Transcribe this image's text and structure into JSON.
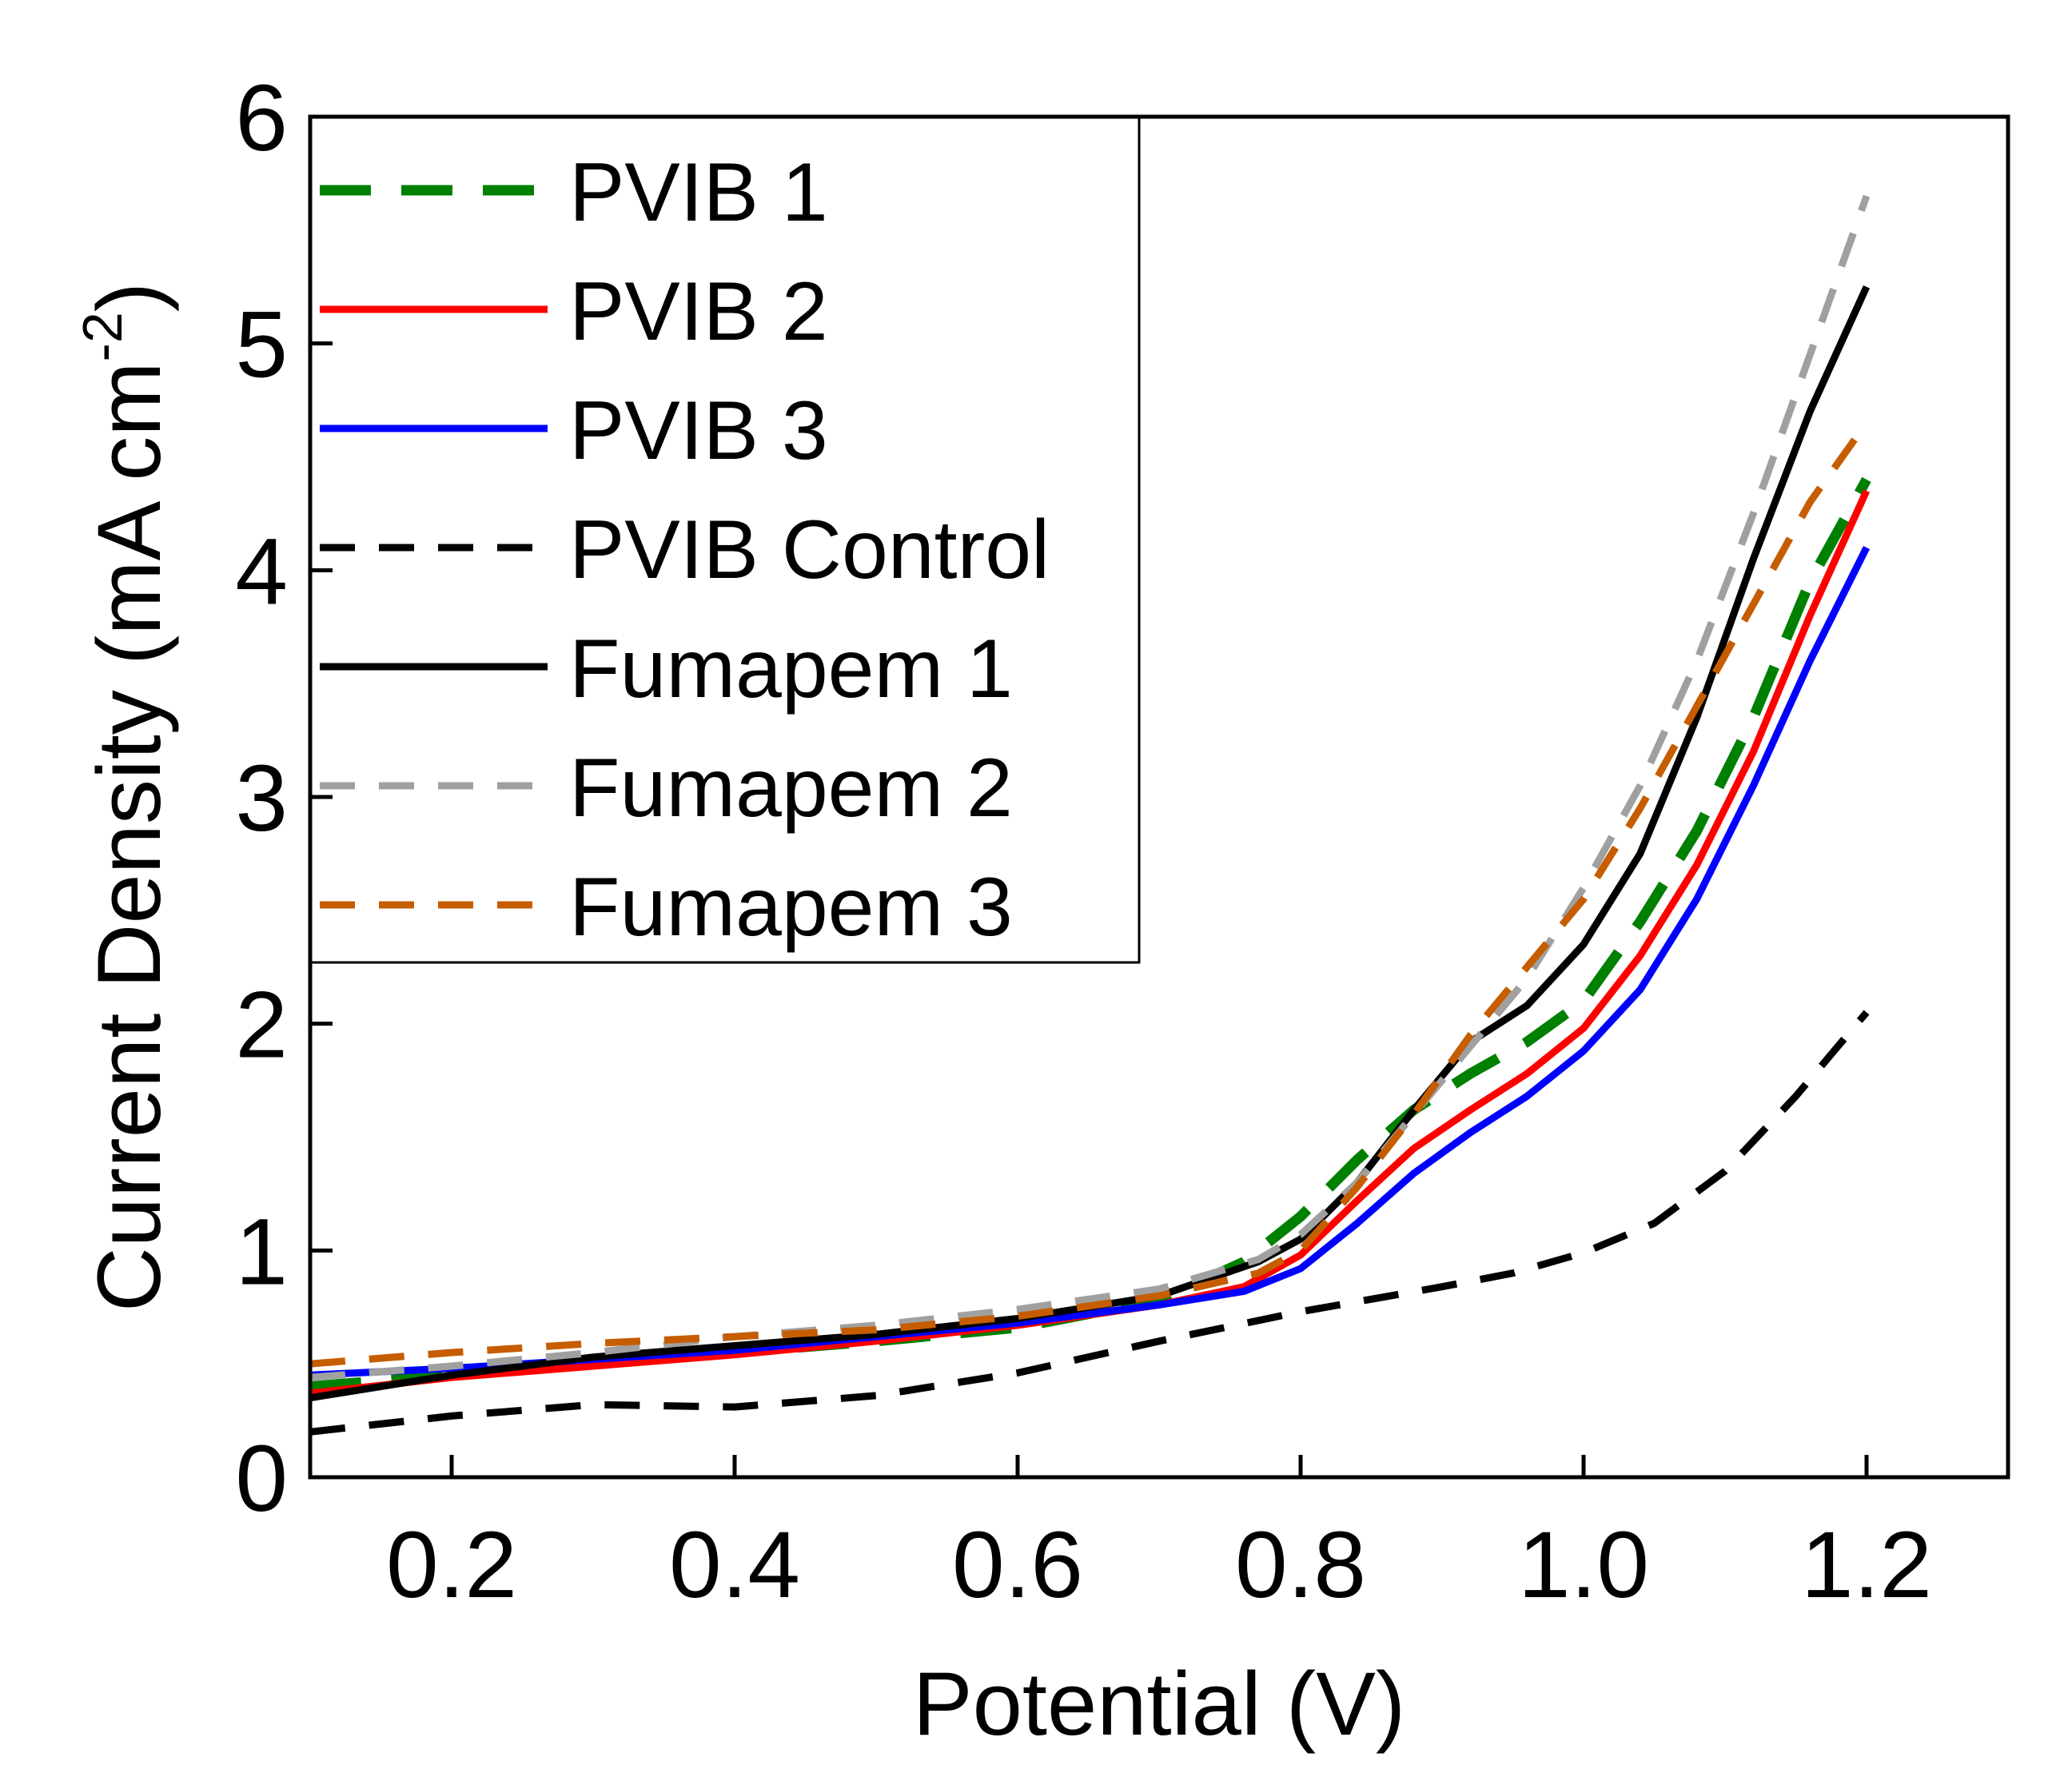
{
  "chart_data": {
    "type": "line",
    "title": "",
    "xlabel": "Potential (V)",
    "ylabel": {
      "text": "Current Density (mA cm",
      "superscript": "-2",
      "suffix": ")"
    },
    "xlim": [
      0.1,
      1.3
    ],
    "ylim": [
      0,
      6
    ],
    "x_ticks": [
      0.2,
      0.4,
      0.6,
      0.8,
      1.0,
      1.2
    ],
    "x_tick_labels": [
      "0.2",
      "0.4",
      "0.6",
      "0.8",
      "1.0",
      "1.2"
    ],
    "y_ticks": [
      0,
      1,
      2,
      3,
      4,
      5,
      6
    ],
    "y_tick_labels": [
      "0",
      "1",
      "2",
      "3",
      "4",
      "5",
      "6"
    ],
    "grid": false,
    "legend_position": "top-left",
    "series": [
      {
        "name": "PVIB 1",
        "color": "#008000",
        "style": "dashed-long",
        "x": [
          0.1,
          0.2,
          0.3,
          0.4,
          0.5,
          0.6,
          0.7,
          0.76,
          0.8,
          0.84,
          0.88,
          0.92,
          0.96,
          1.0,
          1.04,
          1.08,
          1.12,
          1.16,
          1.2
        ],
        "y": [
          0.4,
          0.45,
          0.5,
          0.55,
          0.6,
          0.66,
          0.78,
          0.95,
          1.15,
          1.4,
          1.62,
          1.78,
          1.92,
          2.1,
          2.45,
          2.85,
          3.35,
          3.95,
          4.4
        ]
      },
      {
        "name": "PVIB 2",
        "color": "#ff0000",
        "style": "solid",
        "x": [
          0.1,
          0.2,
          0.3,
          0.4,
          0.5,
          0.6,
          0.7,
          0.76,
          0.8,
          0.84,
          0.88,
          0.92,
          0.96,
          1.0,
          1.04,
          1.08,
          1.12,
          1.16,
          1.2
        ],
        "y": [
          0.37,
          0.44,
          0.49,
          0.54,
          0.6,
          0.67,
          0.76,
          0.84,
          0.98,
          1.22,
          1.45,
          1.62,
          1.78,
          1.98,
          2.3,
          2.7,
          3.2,
          3.8,
          4.35
        ]
      },
      {
        "name": "PVIB 3",
        "color": "#0000ff",
        "style": "solid",
        "x": [
          0.1,
          0.2,
          0.3,
          0.4,
          0.5,
          0.6,
          0.7,
          0.76,
          0.8,
          0.84,
          0.88,
          0.92,
          0.96,
          1.0,
          1.04,
          1.08,
          1.12,
          1.16,
          1.2
        ],
        "y": [
          0.45,
          0.48,
          0.52,
          0.56,
          0.62,
          0.68,
          0.76,
          0.82,
          0.92,
          1.12,
          1.34,
          1.52,
          1.68,
          1.88,
          2.15,
          2.55,
          3.05,
          3.6,
          4.1
        ]
      },
      {
        "name": "PVIB Control",
        "color": "#000000",
        "style": "dashed",
        "x": [
          0.1,
          0.2,
          0.3,
          0.4,
          0.5,
          0.6,
          0.7,
          0.8,
          0.9,
          0.95,
          1.0,
          1.05,
          1.1,
          1.15,
          1.2
        ],
        "y": [
          0.2,
          0.27,
          0.32,
          0.31,
          0.36,
          0.46,
          0.6,
          0.73,
          0.84,
          0.9,
          0.99,
          1.12,
          1.35,
          1.68,
          2.05
        ]
      },
      {
        "name": "Fumapem 1",
        "color": "#000000",
        "style": "solid",
        "x": [
          0.1,
          0.2,
          0.3,
          0.4,
          0.5,
          0.6,
          0.7,
          0.77,
          0.8,
          0.84,
          0.88,
          0.92,
          0.96,
          1.0,
          1.04,
          1.08,
          1.12,
          1.16,
          1.2
        ],
        "y": [
          0.35,
          0.45,
          0.53,
          0.58,
          0.63,
          0.7,
          0.8,
          0.95,
          1.05,
          1.3,
          1.62,
          1.92,
          2.08,
          2.35,
          2.75,
          3.35,
          4.05,
          4.7,
          5.25
        ]
      },
      {
        "name": "Fumapem 2",
        "color": "#a0a0a0",
        "style": "dashed",
        "x": [
          0.1,
          0.2,
          0.3,
          0.4,
          0.5,
          0.6,
          0.7,
          0.77,
          0.8,
          0.84,
          0.88,
          0.92,
          0.96,
          1.0,
          1.04,
          1.08,
          1.12,
          1.16,
          1.2
        ],
        "y": [
          0.44,
          0.49,
          0.55,
          0.62,
          0.67,
          0.74,
          0.83,
          0.96,
          1.07,
          1.3,
          1.6,
          1.9,
          2.2,
          2.6,
          3.05,
          3.6,
          4.25,
          4.95,
          5.65
        ]
      },
      {
        "name": "Fumapem 3",
        "color": "#c65d00",
        "style": "dashed",
        "x": [
          0.1,
          0.2,
          0.3,
          0.4,
          0.5,
          0.6,
          0.7,
          0.77,
          0.8,
          0.84,
          0.88,
          0.92,
          0.96,
          1.0,
          1.04,
          1.08,
          1.12,
          1.16,
          1.2
        ],
        "y": [
          0.5,
          0.55,
          0.59,
          0.62,
          0.65,
          0.71,
          0.8,
          0.9,
          1.0,
          1.28,
          1.6,
          1.95,
          2.25,
          2.55,
          2.95,
          3.4,
          3.85,
          4.3,
          4.65
        ]
      }
    ]
  }
}
